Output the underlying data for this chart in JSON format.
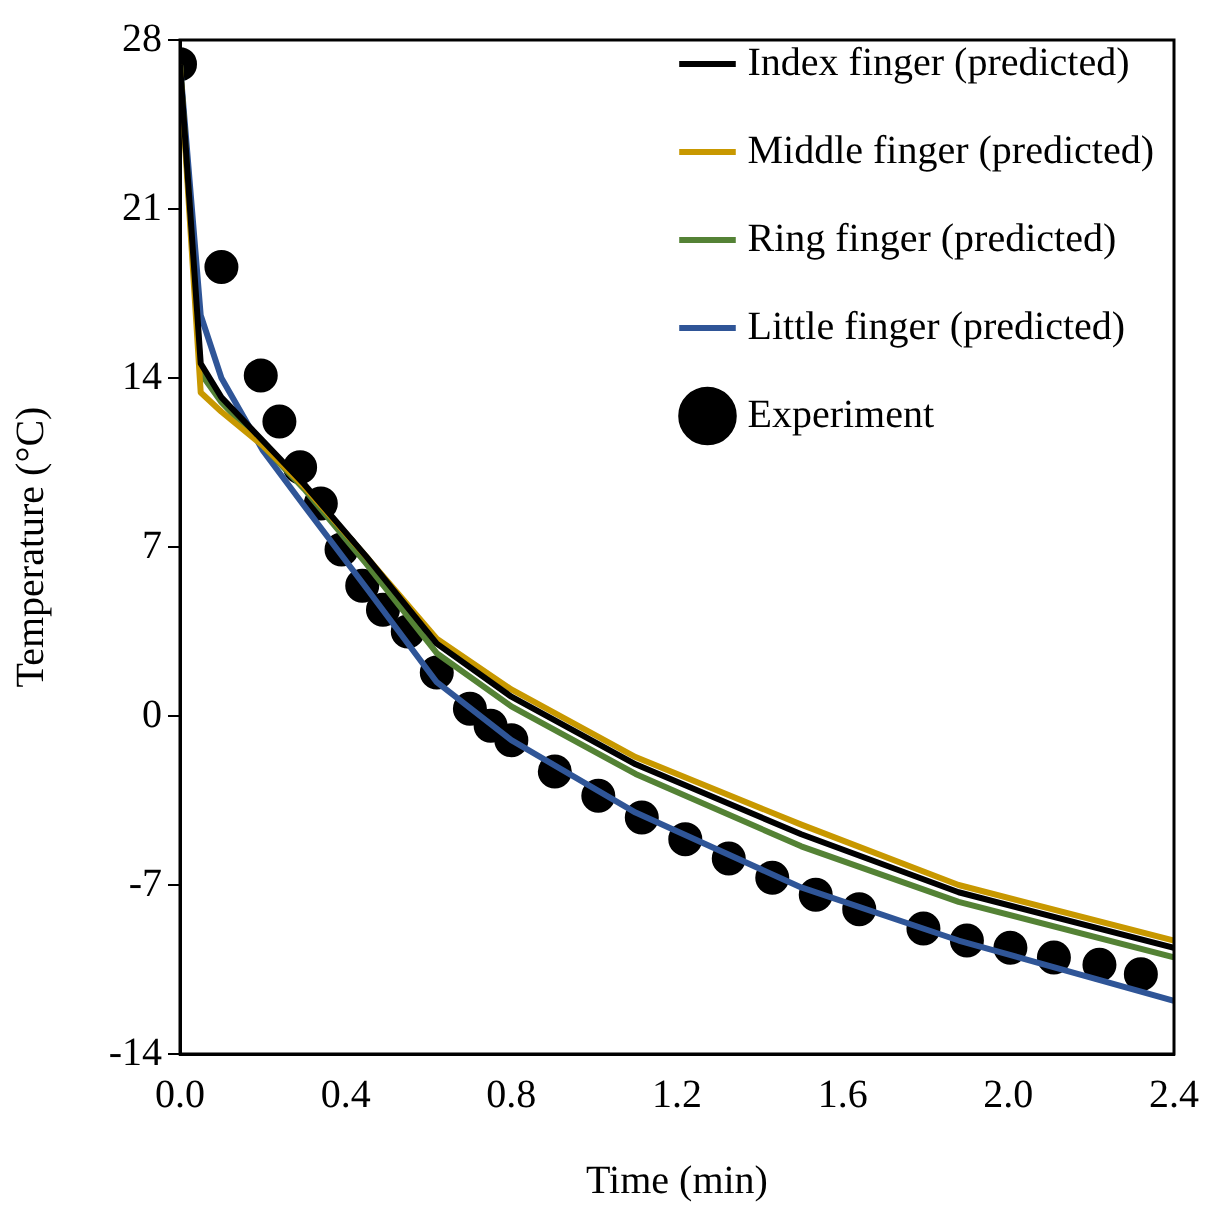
{
  "chart_data": {
    "type": "line",
    "xlabel": "Time (min)",
    "ylabel": "Temperature (°C)",
    "xlim": [
      0,
      2.4
    ],
    "xticks": [
      {
        "value": 0,
        "label": "0.0"
      },
      {
        "value": 0.4,
        "label": "0.4"
      },
      {
        "value": 0.8,
        "label": "0.8"
      },
      {
        "value": 1.2,
        "label": "1.2"
      },
      {
        "value": 1.6,
        "label": "1.6"
      },
      {
        "value": 2,
        "label": "2.0"
      },
      {
        "value": 2.4,
        "label": "2.4"
      }
    ],
    "ylim": [
      -14,
      28
    ],
    "yticks": [
      -14,
      -7,
      0,
      7,
      14,
      21,
      28
    ],
    "grid": false,
    "legend": "top right",
    "line_style": "solid",
    "series": [
      {
        "name": "Index finger (predicted)",
        "type": "line",
        "marker": "none",
        "color": "#000000",
        "x": [
          0,
          0.05,
          0.1,
          0.2,
          0.3,
          0.45,
          0.62,
          0.8,
          1.1,
          1.5,
          1.88,
          2.4
        ],
        "values": [
          27,
          14.6,
          13.2,
          11.4,
          9.6,
          6.6,
          3.0,
          0.8,
          -2.0,
          -4.9,
          -7.3,
          -9.6
        ]
      },
      {
        "name": "Middle finger (predicted)",
        "type": "line",
        "marker": "none",
        "color": "#c89800",
        "x": [
          0,
          0.05,
          0.1,
          0.2,
          0.3,
          0.45,
          0.62,
          0.8,
          1.1,
          1.5,
          1.88,
          2.4
        ],
        "values": [
          27,
          13.4,
          12.6,
          11.2,
          9.5,
          6.6,
          3.2,
          1.1,
          -1.7,
          -4.5,
          -7.0,
          -9.3
        ]
      },
      {
        "name": "Ring finger (predicted)",
        "type": "line",
        "marker": "none",
        "color": "#548235",
        "x": [
          0,
          0.05,
          0.1,
          0.2,
          0.3,
          0.45,
          0.62,
          0.8,
          1.1,
          1.5,
          1.88,
          2.4
        ],
        "values": [
          27,
          14.2,
          13.0,
          11.2,
          9.4,
          6.3,
          2.6,
          0.4,
          -2.4,
          -5.4,
          -7.7,
          -10.0
        ]
      },
      {
        "name": "Little finger (predicted)",
        "type": "line",
        "marker": "none",
        "color": "#2f5597",
        "x": [
          0,
          0.05,
          0.1,
          0.2,
          0.3,
          0.45,
          0.62,
          0.8,
          1.1,
          1.5,
          1.88,
          2.4
        ],
        "values": [
          27,
          16.6,
          14.0,
          11.0,
          8.7,
          5.3,
          1.4,
          -1.0,
          -4.0,
          -7.1,
          -9.3,
          -11.8
        ]
      },
      {
        "name": "Experiment",
        "type": "scatter",
        "marker": "circle",
        "color": "#000000",
        "x": [
          0,
          0.1,
          0.195,
          0.24,
          0.29,
          0.34,
          0.39,
          0.44,
          0.49,
          0.55,
          0.62,
          0.7,
          0.75,
          0.8,
          0.905,
          1.01,
          1.115,
          1.22,
          1.325,
          1.43,
          1.535,
          1.64,
          1.795,
          1.9,
          2.005,
          2.11,
          2.22,
          2.32
        ],
        "values": [
          27,
          18.6,
          14.1,
          12.2,
          10.3,
          8.8,
          6.9,
          5.4,
          4.4,
          3.5,
          1.8,
          0.3,
          -0.4,
          -1.0,
          -2.3,
          -3.3,
          -4.2,
          -5.1,
          -5.9,
          -6.7,
          -7.4,
          -8.0,
          -8.8,
          -9.3,
          -9.6,
          -10.0,
          -10.3,
          -10.7
        ]
      }
    ]
  }
}
